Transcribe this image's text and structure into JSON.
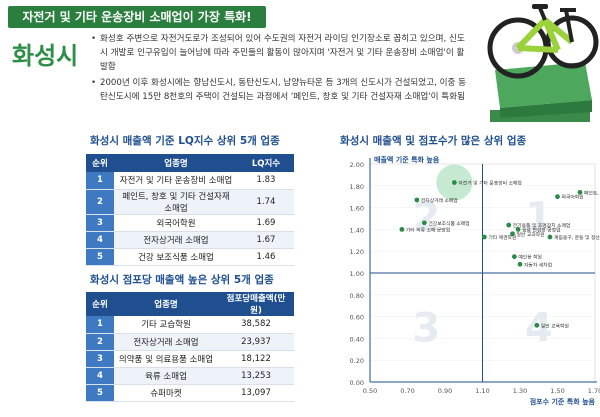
{
  "banner": "자전거 및 기타 운송장비 소매업이 가장 특화!",
  "city": "화성시",
  "intro": [
    "화성호 주변으로 자전거도로가 조성되어 있어 수도권의 자전거 라이딩 인기장소로 꼽히고 있으며, 신도시 개발로 인구유입이 늘어남에 따라 주민들의 활동이 많아지며 '자전거 및 기타 운송장비 소매업'이 활발함",
    "2000년 이후 화성시에는 향남신도시, 동탄신도시, 남양뉴타운 등 3개의 신도시가 건설되었고, 이중 동탄신도시에 15만 8천호의 주택이 건설되는 과정에서 '페인트, 창호 및 기타 건설자재 소매업'이 특화됨"
  ],
  "lq_section": {
    "title": "화성시 매출액 기준 LQ지수 상위 5개 업종",
    "headers": [
      "순위",
      "업종명",
      "LQ지수"
    ],
    "rows": [
      {
        "rank": "1",
        "name": "자전거 및 기타 운송장비 소매업",
        "value": "1.83"
      },
      {
        "rank": "2",
        "name": "페인트, 창호 및 기타 건설자재 소매업",
        "value": "1.74"
      },
      {
        "rank": "3",
        "name": "외국어학원",
        "value": "1.69"
      },
      {
        "rank": "4",
        "name": "전자상거래 소매업",
        "value": "1.67"
      },
      {
        "rank": "5",
        "name": "건강 보조식품 소매업",
        "value": "1.46"
      }
    ]
  },
  "sales_section": {
    "title": "화성시 점포당 매출액 높은 상위 5개 업종",
    "headers": [
      "순위",
      "업종명",
      "점포당매출액(만원)"
    ],
    "rows": [
      {
        "rank": "1",
        "name": "기타 교습학원",
        "value": "38,582"
      },
      {
        "rank": "2",
        "name": "전자상거래 소매업",
        "value": "23,937"
      },
      {
        "rank": "3",
        "name": "의약품 및 의료용품 소매업",
        "value": "18,122"
      },
      {
        "rank": "4",
        "name": "육류 소매업",
        "value": "13,253"
      },
      {
        "rank": "5",
        "name": "슈퍼마켓",
        "value": "13,097"
      }
    ]
  },
  "chart_section": {
    "title": "화성시 매출액 및 점포수가 많은 상위 업종"
  },
  "chart_data": {
    "type": "scatter",
    "ylabel": "매출액 기준 특화 높음",
    "xlabel": "점포수 기준 특화 높음",
    "xlim": [
      0.5,
      1.7
    ],
    "ylim": [
      0.0,
      2.0
    ],
    "xticks": [
      "0.50",
      "0.70",
      "0.90",
      "1.10",
      "1.30",
      "1.50",
      "1.70"
    ],
    "yticks": [
      "0.00",
      "0.20",
      "0.40",
      "0.60",
      "0.80",
      "1.00",
      "1.20",
      "1.40",
      "1.60",
      "1.80",
      "2.00"
    ],
    "quadrants": [
      "1",
      "2",
      "3",
      "4"
    ],
    "divider_x": 1.1,
    "divider_y": 1.0,
    "points": [
      {
        "x": 0.95,
        "y": 1.83,
        "label": "자전거 및 기타 운송장비 소매업",
        "big": true
      },
      {
        "x": 0.75,
        "y": 1.67,
        "label": "전자상거래 소매업"
      },
      {
        "x": 1.5,
        "y": 1.7,
        "label": "외국어학원"
      },
      {
        "x": 1.62,
        "y": 1.74,
        "label": "페인트, 창호 및 기타 건설자재 소매업"
      },
      {
        "x": 0.79,
        "y": 1.46,
        "label": "건강보조식품 소매업"
      },
      {
        "x": 0.67,
        "y": 1.4,
        "label": "기타 의류 소매 문방업"
      },
      {
        "x": 1.24,
        "y": 1.44,
        "label": "전기용품 및 조명장치 소매업"
      },
      {
        "x": 1.29,
        "y": 1.4,
        "label": "음료 면섭장 공정업"
      },
      {
        "x": 1.26,
        "y": 1.36,
        "label": "일반 교과학원"
      },
      {
        "x": 1.11,
        "y": 1.33,
        "label": "기타 애견학원"
      },
      {
        "x": 1.46,
        "y": 1.33,
        "label": "계림용구, 운동 및 정산강 소매업"
      },
      {
        "x": 1.27,
        "y": 1.15,
        "label": "예인용 학원"
      },
      {
        "x": 1.3,
        "y": 1.08,
        "label": "자동차 세차업"
      },
      {
        "x": 1.39,
        "y": 0.52,
        "label": "일반 교육학원"
      }
    ]
  }
}
